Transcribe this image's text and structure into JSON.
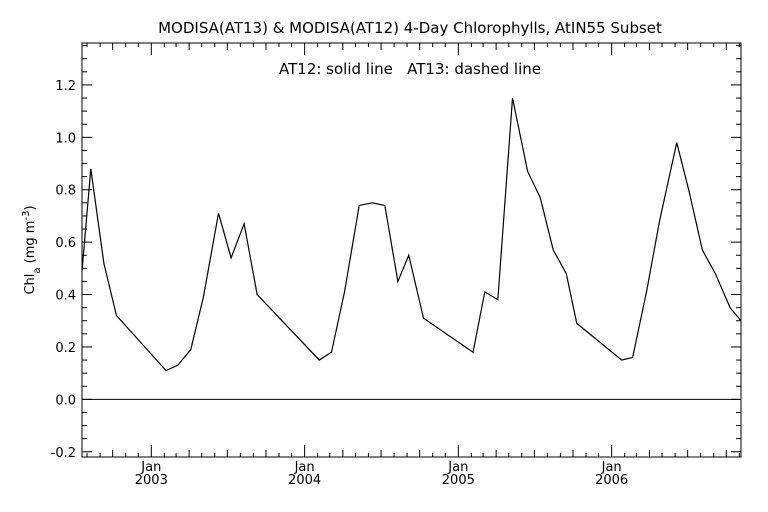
{
  "chart_data": {
    "type": "line",
    "title": "MODISA(AT13) & MODISA(AT12) 4-Day Chlorophylls, AtIN55 Subset",
    "annotation": "AT12: solid line   AT13: dashed line",
    "ylabel": "Chl_a (mg m^-3)",
    "ylim": [
      -0.22,
      1.36
    ],
    "xlim": [
      "2002-07-20",
      "2006-11-05"
    ],
    "y_ticks": [
      -0.2,
      0.0,
      0.2,
      0.4,
      0.6,
      0.8,
      1.0,
      1.2
    ],
    "y_tick_labels": [
      "-0.2",
      "0.0",
      "0.2",
      "0.4",
      "0.6",
      "0.8",
      "1.0",
      "1.2"
    ],
    "x_ticks": [
      {
        "date": "2003-01-01",
        "month": "Jan",
        "year": "2003"
      },
      {
        "date": "2004-01-01",
        "month": "Jan",
        "year": "2004"
      },
      {
        "date": "2005-01-01",
        "month": "Jan",
        "year": "2005"
      },
      {
        "date": "2006-01-01",
        "month": "Jan",
        "year": "2006"
      }
    ],
    "reference_line": {
      "y": 0.0
    },
    "series": [
      {
        "style": "solid",
        "color": "#000000",
        "points": [
          {
            "x": "2002-07-20",
            "y": 0.49
          },
          {
            "x": "2002-08-10",
            "y": 0.88
          },
          {
            "x": "2002-09-10",
            "y": 0.52
          },
          {
            "x": "2002-10-10",
            "y": 0.32
          },
          {
            "x": "2003-02-05",
            "y": 0.11
          },
          {
            "x": "2003-03-05",
            "y": 0.13
          },
          {
            "x": "2003-04-05",
            "y": 0.19
          },
          {
            "x": "2003-05-05",
            "y": 0.39
          },
          {
            "x": "2003-06-10",
            "y": 0.71
          },
          {
            "x": "2003-07-10",
            "y": 0.54
          },
          {
            "x": "2003-08-10",
            "y": 0.67
          },
          {
            "x": "2003-09-10",
            "y": 0.4
          },
          {
            "x": "2004-02-05",
            "y": 0.15
          },
          {
            "x": "2004-03-05",
            "y": 0.18
          },
          {
            "x": "2004-04-05",
            "y": 0.41
          },
          {
            "x": "2004-05-10",
            "y": 0.74
          },
          {
            "x": "2004-06-10",
            "y": 0.75
          },
          {
            "x": "2004-07-10",
            "y": 0.74
          },
          {
            "x": "2004-08-10",
            "y": 0.45
          },
          {
            "x": "2004-09-05",
            "y": 0.55
          },
          {
            "x": "2004-10-10",
            "y": 0.31
          },
          {
            "x": "2005-02-05",
            "y": 0.18
          },
          {
            "x": "2005-03-05",
            "y": 0.41
          },
          {
            "x": "2005-04-05",
            "y": 0.38
          },
          {
            "x": "2005-05-10",
            "y": 1.15
          },
          {
            "x": "2005-06-15",
            "y": 0.87
          },
          {
            "x": "2005-07-15",
            "y": 0.77
          },
          {
            "x": "2005-08-15",
            "y": 0.57
          },
          {
            "x": "2005-09-15",
            "y": 0.48
          },
          {
            "x": "2005-10-10",
            "y": 0.29
          },
          {
            "x": "2006-01-25",
            "y": 0.15
          },
          {
            "x": "2006-02-20",
            "y": 0.16
          },
          {
            "x": "2006-03-25",
            "y": 0.41
          },
          {
            "x": "2006-04-25",
            "y": 0.68
          },
          {
            "x": "2006-06-05",
            "y": 0.98
          },
          {
            "x": "2006-07-05",
            "y": 0.79
          },
          {
            "x": "2006-08-05",
            "y": 0.57
          },
          {
            "x": "2006-09-05",
            "y": 0.48
          },
          {
            "x": "2006-10-10",
            "y": 0.35
          },
          {
            "x": "2006-11-05",
            "y": 0.3
          }
        ]
      }
    ],
    "grid": false,
    "legend": "none"
  }
}
